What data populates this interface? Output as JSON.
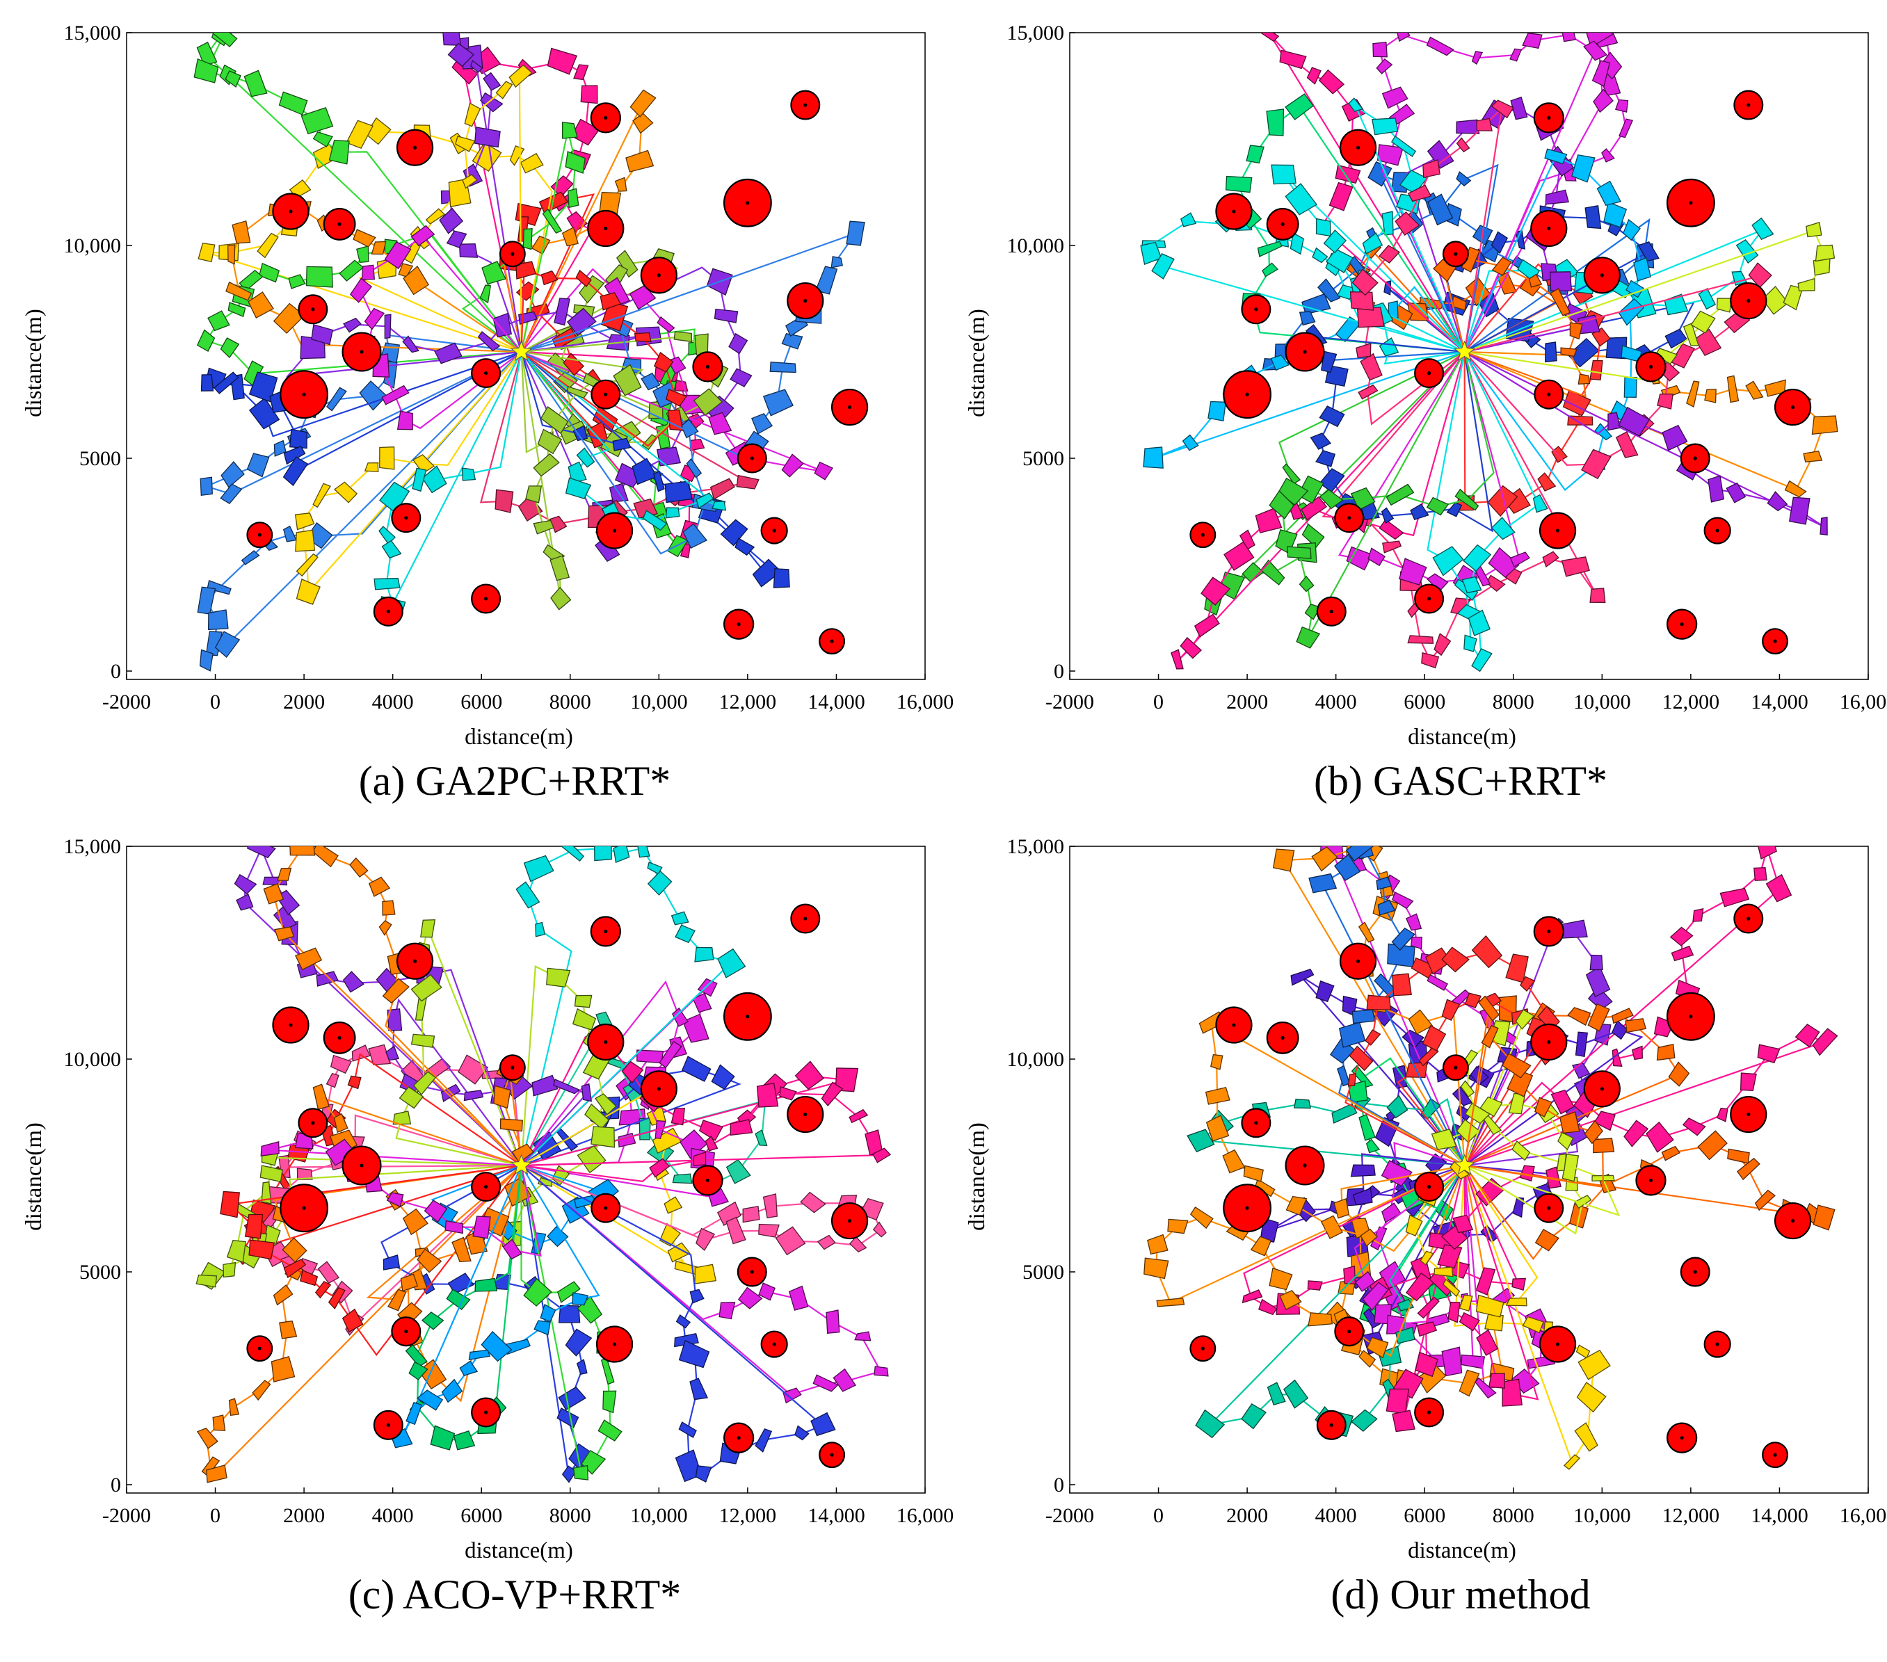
{
  "figure": {
    "captions": [
      "(a) GA2PC+RRT*",
      "(b) GASC+RRT*",
      "(c) ACO-VP+RRT*",
      "(d) Our method"
    ]
  },
  "chart_data": [
    {
      "type": "scatter",
      "panel": "a",
      "title": "(a) GA2PC+RRT*",
      "xlabel": "distance(m)",
      "ylabel": "distance(m)",
      "xlim": [
        -2000,
        16000
      ],
      "ylim": [
        0,
        15000
      ],
      "xticks": [
        "-2000",
        "0",
        "2000",
        "4000",
        "6000",
        "8000",
        "10,000",
        "12,000",
        "14,000",
        "16,000"
      ],
      "yticks": [
        "0",
        "5000",
        "10,000",
        "15,000"
      ],
      "depot": {
        "x": 6900,
        "y": 7500,
        "marker": "star",
        "color": "#ffff00"
      },
      "route_colors": [
        "#1f3fd8",
        "#2f7fe8",
        "#e8336b",
        "#ff1493",
        "#e020e0",
        "#b020f0",
        "#8a2be2",
        "#33dd33",
        "#00cc66",
        "#00dddd",
        "#ffd700",
        "#ff8c00",
        "#ff2020",
        "#9acd32"
      ],
      "seed": 11
    },
    {
      "type": "scatter",
      "panel": "b",
      "title": "(b) GASC+RRT*",
      "xlabel": "distance(m)",
      "ylabel": "distance(m)",
      "xlim": [
        -2000,
        16000
      ],
      "ylim": [
        0,
        15000
      ],
      "xticks": [
        "-2000",
        "0",
        "2000",
        "4000",
        "6000",
        "8000",
        "10,000",
        "12,000",
        "14,000",
        "16,000"
      ],
      "yticks": [
        "0",
        "5000",
        "10,000",
        "15,000"
      ],
      "depot": {
        "x": 6900,
        "y": 7500,
        "marker": "star",
        "color": "#ffff00"
      },
      "route_colors": [
        "#9a20e0",
        "#e020e0",
        "#ff2d7a",
        "#ff8c00",
        "#00bfff",
        "#1e6fe0",
        "#33cc33",
        "#00dd77",
        "#00e5e5",
        "#ff3030",
        "#ccee22",
        "#ff6a00",
        "#ff1493",
        "#2040d0"
      ],
      "seed": 23
    },
    {
      "type": "scatter",
      "panel": "c",
      "title": "(c) ACO-VP+RRT*",
      "xlabel": "distance(m)",
      "ylabel": "distance(m)",
      "xlim": [
        -2000,
        16000
      ],
      "ylim": [
        0,
        15000
      ],
      "xticks": [
        "-2000",
        "0",
        "2000",
        "4000",
        "6000",
        "8000",
        "10,000",
        "12,000",
        "14,000",
        "16,000"
      ],
      "yticks": [
        "0",
        "5000",
        "10,000",
        "15,000"
      ],
      "depot": {
        "x": 6900,
        "y": 7500,
        "marker": "star",
        "color": "#ffff00"
      },
      "route_colors": [
        "#2a40e0",
        "#00a0ff",
        "#8a2be2",
        "#e020e0",
        "#ff1493",
        "#ff7f00",
        "#ffd700",
        "#33dd33",
        "#00cc66",
        "#00dddd",
        "#ff2020",
        "#b0e020",
        "#ff4fa0",
        "#1fd0a0"
      ],
      "seed": 37
    },
    {
      "type": "scatter",
      "panel": "d",
      "title": "(d) Our method",
      "xlabel": "distance(m)",
      "ylabel": "distance(m)",
      "xlim": [
        -2000,
        16000
      ],
      "ylim": [
        0,
        15000
      ],
      "xticks": [
        "-2000",
        "0",
        "2000",
        "4000",
        "6000",
        "8000",
        "10,000",
        "12,000",
        "14,000",
        "16,000"
      ],
      "yticks": [
        "0",
        "5000",
        "10,000",
        "15,000"
      ],
      "depot": {
        "x": 6900,
        "y": 7500,
        "marker": "star",
        "color": "#ffff00"
      },
      "route_colors": [
        "#33cc33",
        "#00dd66",
        "#1f6fe0",
        "#5020d0",
        "#ff8c00",
        "#ff2d2d",
        "#ff1493",
        "#e020e0",
        "#00dddd",
        "#ffd700",
        "#ccee22",
        "#8a2be2",
        "#00c8a0",
        "#ff6a00"
      ],
      "seed": 53
    }
  ],
  "obstacles": [
    {
      "x": 1700,
      "y": 10800,
      "r": 400
    },
    {
      "x": 2800,
      "y": 10500,
      "r": 350
    },
    {
      "x": 4500,
      "y": 12300,
      "r": 400
    },
    {
      "x": 2200,
      "y": 8500,
      "r": 320
    },
    {
      "x": 3300,
      "y": 7500,
      "r": 430
    },
    {
      "x": 2000,
      "y": 6500,
      "r": 530
    },
    {
      "x": 1000,
      "y": 3200,
      "r": 280
    },
    {
      "x": 4300,
      "y": 3600,
      "r": 320
    },
    {
      "x": 3900,
      "y": 1400,
      "r": 320
    },
    {
      "x": 6100,
      "y": 1700,
      "r": 320
    },
    {
      "x": 6700,
      "y": 9800,
      "r": 280
    },
    {
      "x": 6100,
      "y": 7000,
      "r": 320
    },
    {
      "x": 8800,
      "y": 13000,
      "r": 330
    },
    {
      "x": 8800,
      "y": 10400,
      "r": 400
    },
    {
      "x": 10000,
      "y": 9300,
      "r": 400
    },
    {
      "x": 8800,
      "y": 6500,
      "r": 320
    },
    {
      "x": 9000,
      "y": 3300,
      "r": 400
    },
    {
      "x": 11100,
      "y": 7150,
      "r": 330
    },
    {
      "x": 12000,
      "y": 11000,
      "r": 530
    },
    {
      "x": 13300,
      "y": 13300,
      "r": 320
    },
    {
      "x": 13300,
      "y": 8700,
      "r": 400
    },
    {
      "x": 14300,
      "y": 6200,
      "r": 400
    },
    {
      "x": 12100,
      "y": 5000,
      "r": 320
    },
    {
      "x": 12600,
      "y": 3300,
      "r": 290
    },
    {
      "x": 11800,
      "y": 1100,
      "r": 330
    },
    {
      "x": 13900,
      "y": 700,
      "r": 280
    }
  ]
}
